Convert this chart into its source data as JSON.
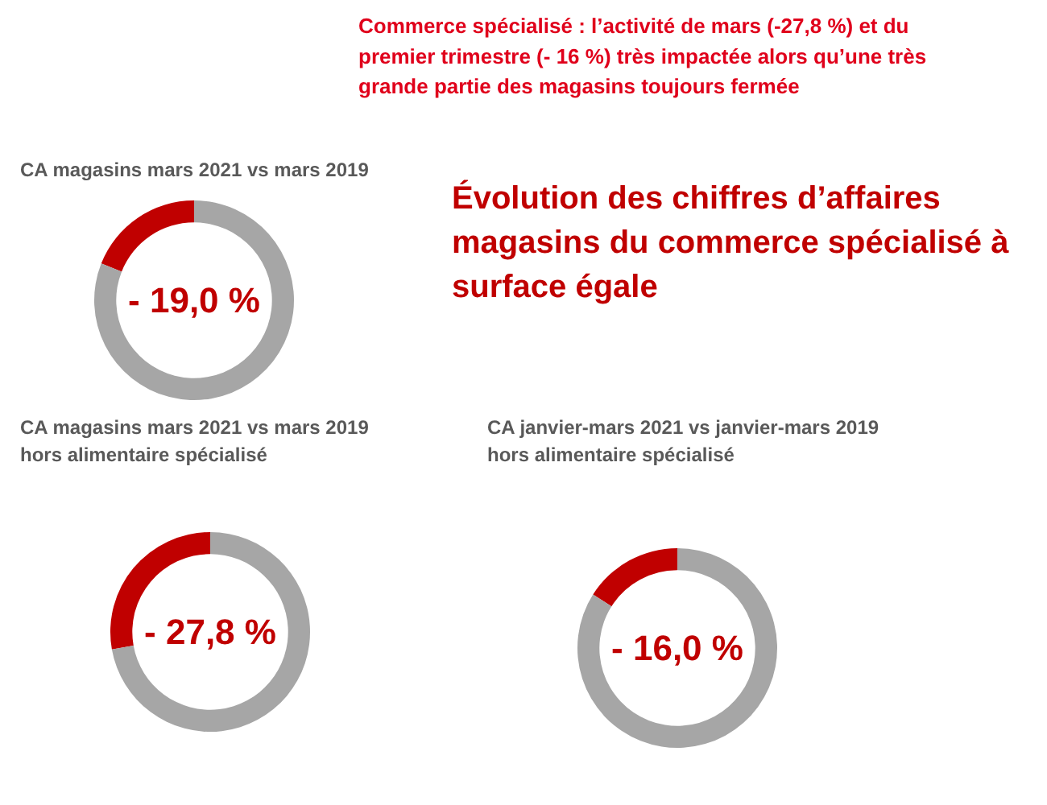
{
  "chart_data": [
    {
      "type": "other",
      "title": "Commerce spécialisé : l’activité de mars (-27,8 %) et du premier trimestre (- 16 %) très impactée alors qu’une très grande partie des magasins toujours fermée",
      "annotations": [
        "Évolution des chiffres d’affaires magasins du commerce spécialisé à surface égale"
      ]
    },
    {
      "type": "donut",
      "title": "CA magasins mars 2021 vs mars 2019",
      "categories": [
        null,
        null
      ],
      "values": [
        19,
        81
      ],
      "colors": [
        "#c00000",
        "#a6a6a6"
      ],
      "annotations": [
        "- 19,0 %"
      ]
    },
    {
      "type": "donut",
      "title": "CA magasins mars 2021 vs mars 2019",
      "subtitle": "hors alimentaire spécialisé",
      "categories": [
        null,
        null
      ],
      "values": [
        27.8,
        72.2
      ],
      "colors": [
        "#c00000",
        "#a6a6a6"
      ],
      "annotations": [
        "- 27,8 %"
      ]
    },
    {
      "type": "donut",
      "title": "CA janvier-mars 2021 vs janvier-mars 2019",
      "subtitle": "hors alimentaire spécialisé",
      "categories": [
        null,
        null
      ],
      "values": [
        16,
        84
      ],
      "colors": [
        "#c00000",
        "#a6a6a6"
      ],
      "annotations": [
        "- 16,0 %"
      ]
    }
  ]
}
